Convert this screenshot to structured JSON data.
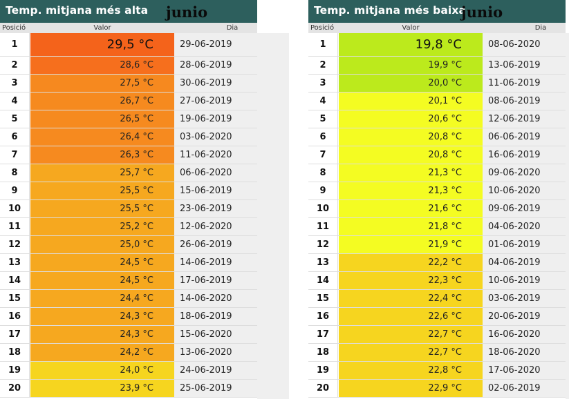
{
  "left": {
    "title": "Temp. mitjana més alta",
    "month": "junio",
    "headers": {
      "pos": "Posició",
      "value": "Valor",
      "day": "Dia"
    },
    "rows": [
      {
        "pos": "1",
        "value": "29,5 °C",
        "day": "29-06-2019",
        "color": "#f4631b"
      },
      {
        "pos": "2",
        "value": "28,6 °C",
        "day": "28-06-2019",
        "color": "#f66f1d"
      },
      {
        "pos": "3",
        "value": "27,5 °C",
        "day": "30-06-2019",
        "color": "#f6891f"
      },
      {
        "pos": "4",
        "value": "26,7 °C",
        "day": "27-06-2019",
        "color": "#f68a1f"
      },
      {
        "pos": "5",
        "value": "26,5 °C",
        "day": "19-06-2019",
        "color": "#f68a1f"
      },
      {
        "pos": "6",
        "value": "26,4 °C",
        "day": "03-06-2020",
        "color": "#f68a1f"
      },
      {
        "pos": "7",
        "value": "26,3 °C",
        "day": "11-06-2020",
        "color": "#f68a1f"
      },
      {
        "pos": "8",
        "value": "25,7 °C",
        "day": "06-06-2020",
        "color": "#f6a81f"
      },
      {
        "pos": "9",
        "value": "25,5 °C",
        "day": "15-06-2019",
        "color": "#f6a81f"
      },
      {
        "pos": "10",
        "value": "25,5 °C",
        "day": "23-06-2019",
        "color": "#f6a81f"
      },
      {
        "pos": "11",
        "value": "25,2 °C",
        "day": "12-06-2020",
        "color": "#f6a81f"
      },
      {
        "pos": "12",
        "value": "25,0 °C",
        "day": "26-06-2019",
        "color": "#f6a81f"
      },
      {
        "pos": "13",
        "value": "24,5 °C",
        "day": "14-06-2019",
        "color": "#f6a81f"
      },
      {
        "pos": "14",
        "value": "24,5 °C",
        "day": "17-06-2019",
        "color": "#f6a81f"
      },
      {
        "pos": "15",
        "value": "24,4 °C",
        "day": "14-06-2020",
        "color": "#f6a81f"
      },
      {
        "pos": "16",
        "value": "24,3 °C",
        "day": "18-06-2019",
        "color": "#f6a81f"
      },
      {
        "pos": "17",
        "value": "24,3 °C",
        "day": "15-06-2020",
        "color": "#f6a81f"
      },
      {
        "pos": "18",
        "value": "24,2 °C",
        "day": "13-06-2020",
        "color": "#f6a81f"
      },
      {
        "pos": "19",
        "value": "24,0 °C",
        "day": "24-06-2019",
        "color": "#f6d51f"
      },
      {
        "pos": "20",
        "value": "23,9 °C",
        "day": "25-06-2019",
        "color": "#f6d51f"
      }
    ]
  },
  "right": {
    "title": "Temp. mitjana més baixa",
    "month": "junio",
    "headers": {
      "pos": "Posició",
      "value": "Valor",
      "day": "Dia"
    },
    "rows": [
      {
        "pos": "1",
        "value": "19,8 °C",
        "day": "08-06-2020",
        "color": "#bcea1c"
      },
      {
        "pos": "2",
        "value": "19,9 °C",
        "day": "13-06-2019",
        "color": "#bcea1c"
      },
      {
        "pos": "3",
        "value": "20,0 °C",
        "day": "11-06-2019",
        "color": "#bcea1c"
      },
      {
        "pos": "4",
        "value": "20,1 °C",
        "day": "08-06-2019",
        "color": "#f4fc22"
      },
      {
        "pos": "5",
        "value": "20,6 °C",
        "day": "12-06-2019",
        "color": "#f4fc22"
      },
      {
        "pos": "6",
        "value": "20,8 °C",
        "day": "06-06-2019",
        "color": "#f4fc22"
      },
      {
        "pos": "7",
        "value": "20,8 °C",
        "day": "16-06-2019",
        "color": "#f4fc22"
      },
      {
        "pos": "8",
        "value": "21,3 °C",
        "day": "09-06-2020",
        "color": "#f4fc22"
      },
      {
        "pos": "9",
        "value": "21,3 °C",
        "day": "10-06-2020",
        "color": "#f4fc22"
      },
      {
        "pos": "10",
        "value": "21,6 °C",
        "day": "09-06-2019",
        "color": "#f4fc22"
      },
      {
        "pos": "11",
        "value": "21,8 °C",
        "day": "04-06-2020",
        "color": "#f4fc22"
      },
      {
        "pos": "12",
        "value": "21,9 °C",
        "day": "01-06-2019",
        "color": "#f4fc22"
      },
      {
        "pos": "13",
        "value": "22,2 °C",
        "day": "04-06-2019",
        "color": "#f6d51f"
      },
      {
        "pos": "14",
        "value": "22,3 °C",
        "day": "10-06-2019",
        "color": "#f6d51f"
      },
      {
        "pos": "15",
        "value": "22,4 °C",
        "day": "03-06-2019",
        "color": "#f6d51f"
      },
      {
        "pos": "16",
        "value": "22,6 °C",
        "day": "20-06-2019",
        "color": "#f6d51f"
      },
      {
        "pos": "17",
        "value": "22,7 °C",
        "day": "16-06-2020",
        "color": "#f6d51f"
      },
      {
        "pos": "18",
        "value": "22,7 °C",
        "day": "18-06-2020",
        "color": "#f6d51f"
      },
      {
        "pos": "19",
        "value": "22,8 °C",
        "day": "17-06-2020",
        "color": "#f6d51f"
      },
      {
        "pos": "20",
        "value": "22,9 °C",
        "day": "02-06-2019",
        "color": "#f6d51f"
      }
    ]
  }
}
